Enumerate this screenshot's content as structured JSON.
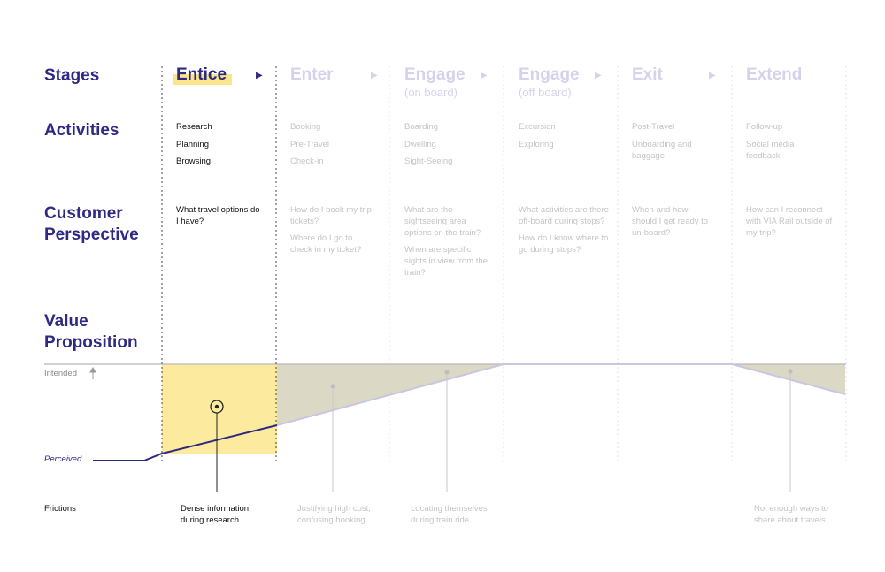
{
  "row_labels": {
    "stages": "Stages",
    "activities": "Activities",
    "customer_perspective_1": "Customer",
    "customer_perspective_2": "Perspective",
    "value_proposition_1": "Value",
    "value_proposition_2": "Proposition",
    "intended": "Intended",
    "perceived": "Perceived",
    "frictions": "Frictions"
  },
  "stages": [
    {
      "title": "Entice",
      "subtitle": "",
      "activities": [
        "Research",
        "Planning",
        "Browsing"
      ],
      "perspective": [
        "What travel options do I have?"
      ]
    },
    {
      "title": "Enter",
      "subtitle": "",
      "activities": [
        "Booking",
        "Pre-Travel",
        "Check-in"
      ],
      "perspective": [
        "How do I book my trip tickets?",
        "Where do I go to check in my ticket?"
      ]
    },
    {
      "title": "Engage",
      "subtitle": "(on board)",
      "activities": [
        "Boarding",
        "Dwelling",
        "Sight-Seeing"
      ],
      "perspective": [
        "What are the sightseeing area options on the train?",
        "When are specific sights in view from the train?"
      ]
    },
    {
      "title": "Engage",
      "subtitle": "(off board)",
      "activities": [
        "Excursion",
        "Exploring"
      ],
      "perspective": [
        "What activities are there off-board during stops?",
        "How do I know where to go during stops?"
      ]
    },
    {
      "title": "Exit",
      "subtitle": "",
      "activities": [
        "Post-Travel",
        "Unboarding and baggage"
      ],
      "perspective": [
        "When and how should I get ready to un-board?"
      ]
    },
    {
      "title": "Extend",
      "subtitle": "",
      "activities": [
        "Follow-up",
        "Social media feedback"
      ],
      "perspective": [
        "How can I reconnect with VIA Rail outside of my trip?"
      ]
    }
  ],
  "frictions": [
    "Dense information during research",
    "Justifying high cost, confusing booking",
    "Locating themselves during train ride",
    "Not enough ways to share about travels"
  ],
  "colors": {
    "navy": "#2e2a84",
    "faded_stage": "#d5d3ec",
    "highlight": "#fbe58b",
    "gap_fill": "#dcd8c6",
    "gap_fill_active": "#fcea9e",
    "grey_text": "#c4c4c4"
  },
  "icons": {
    "up_arrow": "up-arrow-icon",
    "target": "target-icon",
    "play_arrow": "play-arrow-icon"
  }
}
